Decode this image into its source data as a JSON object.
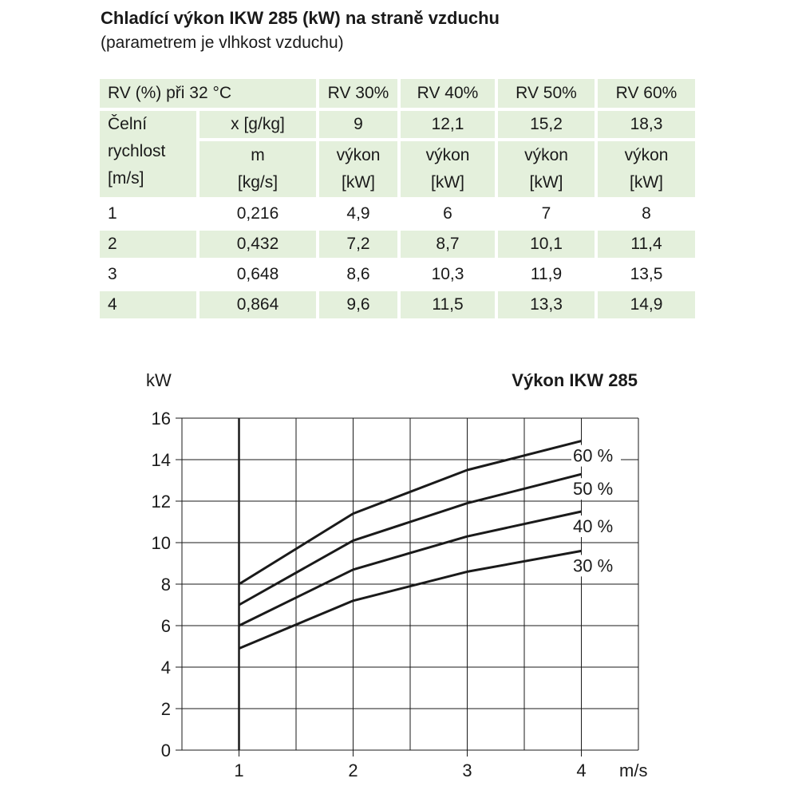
{
  "header": {
    "title": "Chladící výkon IKW 285 (kW) na straně vzduchu",
    "subtitle": "(parametrem je vlhkost vzduchu)"
  },
  "table": {
    "rv_label": "RV (%) při 32 °C",
    "rv_headers": [
      "RV 30%",
      "RV 40%",
      "RV 50%",
      "RV 60%"
    ],
    "velocity_label": [
      "Čelní",
      "rychlost",
      "[m/s]"
    ],
    "x_label": "x [g/kg]",
    "x_values": [
      "9",
      "12,1",
      "15,2",
      "18,3"
    ],
    "m_label": [
      "m",
      "[kg/s]"
    ],
    "power_label": [
      "výkon",
      "[kW]"
    ],
    "rows": [
      {
        "velocity": "1",
        "m": "0,216",
        "values": [
          "4,9",
          "6",
          "7",
          "8"
        ]
      },
      {
        "velocity": "2",
        "m": "0,432",
        "values": [
          "7,2",
          "8,7",
          "10,1",
          "11,4"
        ]
      },
      {
        "velocity": "3",
        "m": "0,648",
        "values": [
          "8,6",
          "10,3",
          "11,9",
          "13,5"
        ]
      },
      {
        "velocity": "4",
        "m": "0,864",
        "values": [
          "9,6",
          "11,5",
          "13,3",
          "14,9"
        ]
      }
    ]
  },
  "chart_data": {
    "type": "line",
    "title": "Výkon IKW 285",
    "ylabel": "kW",
    "xlabel": "m/s",
    "x": [
      1,
      2,
      3,
      4
    ],
    "xlim": [
      0.5,
      4.5
    ],
    "ylim": [
      0,
      16
    ],
    "yticks": [
      0,
      2,
      4,
      6,
      8,
      10,
      12,
      14,
      16
    ],
    "xticks": [
      1,
      2,
      3,
      4
    ],
    "grid": true,
    "series": [
      {
        "name": "30 %",
        "values": [
          4.9,
          7.2,
          8.6,
          9.6
        ]
      },
      {
        "name": "40 %",
        "values": [
          6,
          8.7,
          10.3,
          11.5
        ]
      },
      {
        "name": "50 %",
        "values": [
          7,
          10.1,
          11.9,
          13.3
        ]
      },
      {
        "name": "60 %",
        "values": [
          8,
          11.4,
          13.5,
          14.9
        ]
      }
    ],
    "line_color": "#1a1a1a",
    "grid_color": "#1a1a1a"
  }
}
